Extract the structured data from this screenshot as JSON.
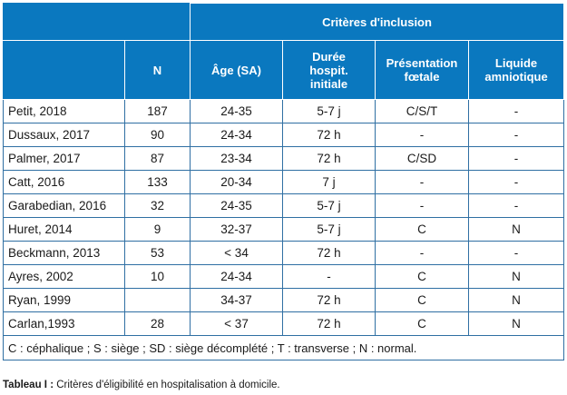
{
  "header": {
    "group": "Critères d'inclusion",
    "columns": [
      "N",
      "Âge (SA)",
      "Durée hospit. initiale",
      "Présentation fœtale",
      "Liquide amniotique"
    ],
    "duree_lines": [
      "Durée",
      "hospit.",
      "initiale"
    ],
    "presentation_lines": [
      "Présentation",
      "fœtale"
    ],
    "liquide_lines": [
      "Liquide",
      "amniotique"
    ]
  },
  "rows": [
    {
      "study": "Petit, 2018",
      "n": "187",
      "age": "24-35",
      "duree": "5-7 j",
      "presentation": "C/S/T",
      "liquide": "-"
    },
    {
      "study": "Dussaux, 2017",
      "n": "90",
      "age": "24-34",
      "duree": "72 h",
      "presentation": "-",
      "liquide": "-"
    },
    {
      "study": "Palmer, 2017",
      "n": "87",
      "age": "23-34",
      "duree": "72 h",
      "presentation": "C/SD",
      "liquide": "-"
    },
    {
      "study": "Catt, 2016",
      "n": "133",
      "age": "20-34",
      "duree": "7 j",
      "presentation": "-",
      "liquide": "-"
    },
    {
      "study": "Garabedian, 2016",
      "n": "32",
      "age": "24-35",
      "duree": "5-7 j",
      "presentation": "-",
      "liquide": "-"
    },
    {
      "study": "Huret, 2014",
      "n": "9",
      "age": "32-37",
      "duree": "5-7 j",
      "presentation": "C",
      "liquide": "N"
    },
    {
      "study": "Beckmann, 2013",
      "n": "53",
      "age": "< 34",
      "duree": "72 h",
      "presentation": "-",
      "liquide": "-"
    },
    {
      "study": "Ayres, 2002",
      "n": "10",
      "age": "24-34",
      "duree": "-",
      "presentation": "C",
      "liquide": "N"
    },
    {
      "study": "Ryan, 1999",
      "n": "",
      "age": "34-37",
      "duree": "72 h",
      "presentation": "C",
      "liquide": "N"
    },
    {
      "study": "Carlan,1993",
      "n": "28",
      "age": "< 37",
      "duree": "72 h",
      "presentation": "C",
      "liquide": "N"
    }
  ],
  "legend": "C : céphalique ; S : siège ; SD : siège décomplété ; T : transverse ; N : normal.",
  "caption": {
    "label": "Tableau I :",
    "text": " Critères d'éligibilité en hospitalisation à domicile."
  },
  "colors": {
    "header_bg": "#0a78bf",
    "border": "#2f6fa3"
  }
}
